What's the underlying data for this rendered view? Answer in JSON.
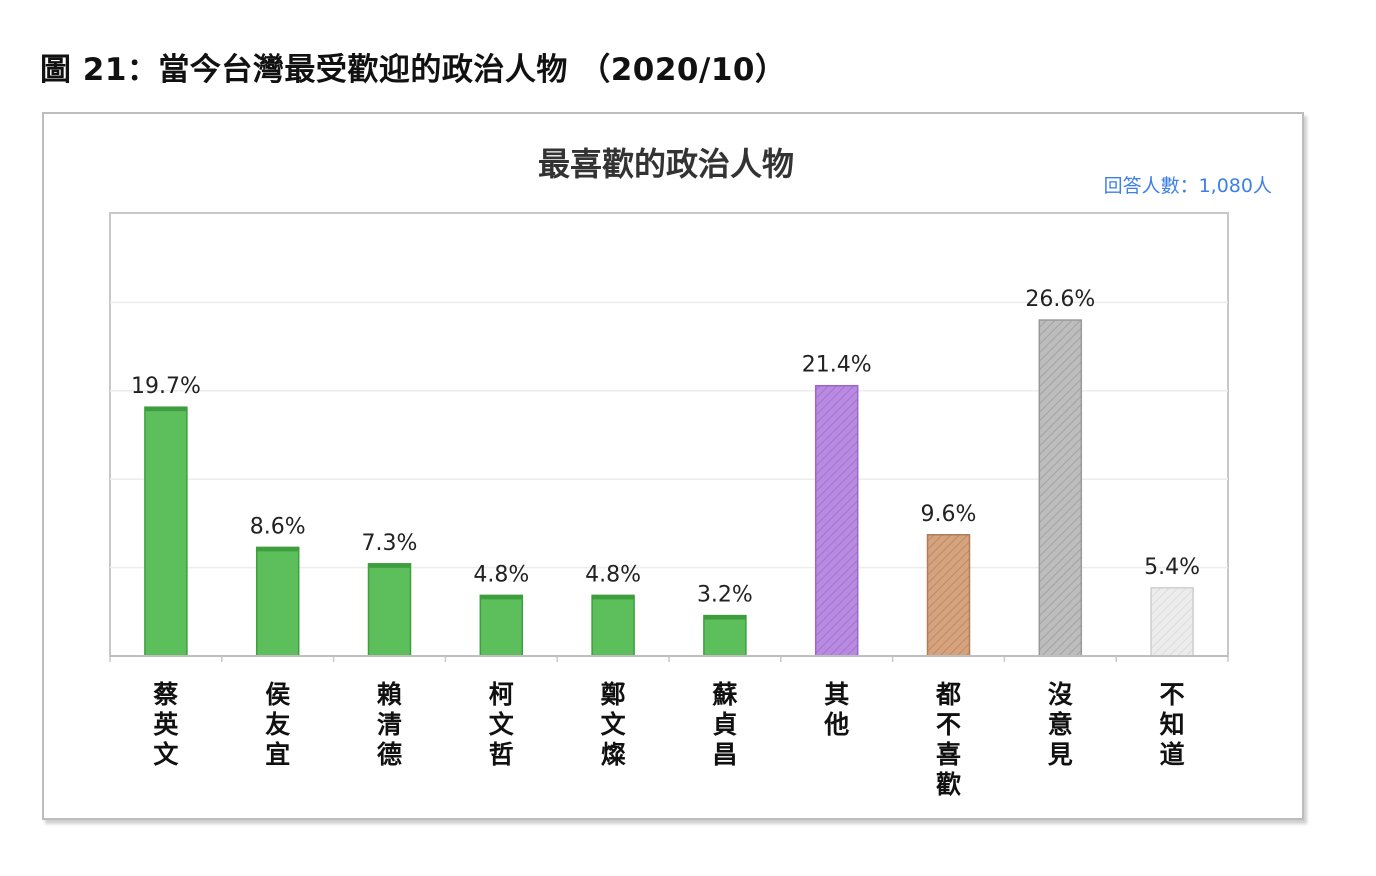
{
  "figure_title": "圖 21：當今台灣最受歡迎的政治人物 （2020/10）",
  "respondents_note": "回答人數：1,080人",
  "colors": {
    "green": "#5cbf5c",
    "green_top": "#3e9e3e",
    "purple": "#b98be0",
    "brown": "#d5a37e",
    "gray": "#b8b8b8",
    "lightgray": "#e9e9e9",
    "note_blue": "#3f7fe8"
  },
  "chart_data": {
    "type": "bar",
    "title": "最喜歡的政治人物",
    "categories": [
      "蔡英文",
      "侯友宜",
      "賴清德",
      "柯文哲",
      "鄭文燦",
      "蘇貞昌",
      "其他",
      "都不喜歡",
      "沒意見",
      "不知道"
    ],
    "values": [
      19.7,
      8.6,
      7.3,
      4.8,
      4.8,
      3.2,
      21.4,
      9.6,
      26.6,
      5.4
    ],
    "data_labels": [
      "19.7%",
      "8.6%",
      "7.3%",
      "4.8%",
      "4.8%",
      "3.2%",
      "21.4%",
      "9.6%",
      "26.6%",
      "5.4%"
    ],
    "bar_colors": [
      "green",
      "green",
      "green",
      "green",
      "green",
      "green",
      "purple",
      "brown",
      "gray",
      "lightgray"
    ],
    "ylim": [
      0,
      30
    ],
    "grid": true,
    "xlabel": "",
    "ylabel": ""
  }
}
